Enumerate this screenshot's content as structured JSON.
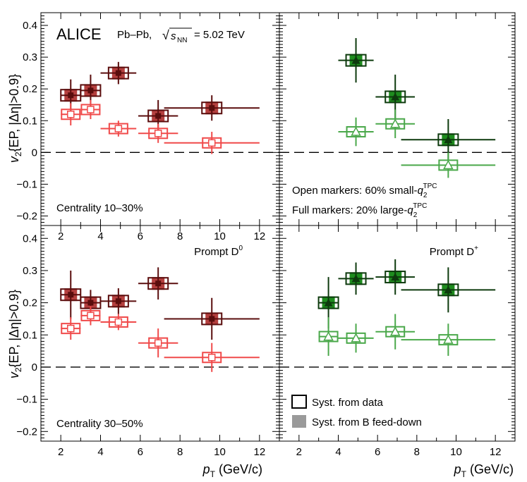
{
  "figure": {
    "experiment": "ALICE",
    "system": "Pb–Pb,",
    "energy": "= 5.02 TeV",
    "sqrt_sym": "√",
    "s_sym": "s",
    "nn_sub": "NN",
    "legend": {
      "data_label": "Syst. from data",
      "bfd_label": "Syst. from B feed-down",
      "open_markers_prefix": "Open markers: 60% small-",
      "full_markers_prefix": "Full markers: 20% large-",
      "q_sym": "q",
      "q_sub": "2",
      "q_sup": "TPC"
    },
    "ylabel": {
      "v": "v",
      "sub": "2",
      "rest": "{EP, |Δη|>0.9}"
    },
    "xlabel": {
      "p": "p",
      "sub": "T",
      "rest": " (GeV/c)"
    },
    "colors": {
      "D0_large": "#5a0d0d",
      "D0_large_fill": "#b5403f",
      "D0_small": "#f04a4a",
      "Dplus_large": "#0d3a0d",
      "Dplus_large_fill": "#1e8c1e",
      "Dplus_small": "#4aa84a"
    }
  },
  "chart_data": [
    {
      "type": "scatter",
      "panel": "top-left",
      "annotation": "Centrality 10–30%",
      "xlim": [
        1,
        13
      ],
      "ylim": [
        -0.23,
        0.44
      ],
      "x_ticks": [
        "2",
        "4",
        "6",
        "8",
        "10",
        "12"
      ],
      "y_ticks": [
        "−0.2",
        "−0.1",
        "0",
        "0.1",
        "0.2",
        "0.3",
        "0.4"
      ],
      "series": [
        {
          "style": "full",
          "species": "D0",
          "points": [
            {
              "x": 2.5,
              "xerr": 0.5,
              "y": 0.18,
              "yerr": 0.05
            },
            {
              "x": 3.5,
              "xerr": 0.5,
              "y": 0.195,
              "yerr": 0.05
            },
            {
              "x": 4.9,
              "xerr": 0.9,
              "y": 0.25,
              "yerr": 0.035
            },
            {
              "x": 6.9,
              "xerr": 1.0,
              "y": 0.115,
              "yerr": 0.05
            },
            {
              "x": 9.6,
              "xerr": 2.4,
              "y": 0.14,
              "yerr": 0.04
            }
          ]
        },
        {
          "style": "open",
          "species": "D0",
          "points": [
            {
              "x": 2.5,
              "xerr": 0.5,
              "y": 0.12,
              "yerr": 0.035
            },
            {
              "x": 3.5,
              "xerr": 0.5,
              "y": 0.135,
              "yerr": 0.03
            },
            {
              "x": 4.9,
              "xerr": 0.9,
              "y": 0.075,
              "yerr": 0.025
            },
            {
              "x": 6.9,
              "xerr": 1.0,
              "y": 0.06,
              "yerr": 0.03
            },
            {
              "x": 9.6,
              "xerr": 2.4,
              "y": 0.03,
              "yerr": 0.035
            }
          ]
        }
      ]
    },
    {
      "type": "scatter",
      "panel": "top-right",
      "annotation": "",
      "xlim": [
        1,
        13
      ],
      "ylim": [
        -0.23,
        0.44
      ],
      "x_ticks": [],
      "y_ticks": [],
      "series": [
        {
          "style": "full",
          "species": "Dplus",
          "points": [
            {
              "x": 4.9,
              "xerr": 0.9,
              "y": 0.29,
              "yerr": 0.07
            },
            {
              "x": 6.9,
              "xerr": 1.0,
              "y": 0.175,
              "yerr": 0.07
            },
            {
              "x": 9.6,
              "xerr": 2.4,
              "y": 0.04,
              "yerr": 0.065
            }
          ]
        },
        {
          "style": "open",
          "species": "Dplus",
          "points": [
            {
              "x": 4.9,
              "xerr": 0.9,
              "y": 0.065,
              "yerr": 0.045
            },
            {
              "x": 6.9,
              "xerr": 1.0,
              "y": 0.09,
              "yerr": 0.045
            },
            {
              "x": 9.6,
              "xerr": 2.4,
              "y": -0.04,
              "yerr": 0.04
            }
          ]
        }
      ]
    },
    {
      "type": "scatter",
      "panel": "bottom-left",
      "annotation": "Centrality 30–50%",
      "label": "Prompt D",
      "label_sup": "0",
      "xlim": [
        1,
        13
      ],
      "ylim": [
        -0.23,
        0.44
      ],
      "x_ticks": [
        "2",
        "4",
        "6",
        "8",
        "10",
        "12"
      ],
      "y_ticks": [
        "−0.2",
        "−0.1",
        "0",
        "0.1",
        "0.2",
        "0.3",
        "0.4"
      ],
      "series": [
        {
          "style": "full",
          "species": "D0",
          "points": [
            {
              "x": 2.5,
              "xerr": 0.5,
              "y": 0.225,
              "yerr": 0.075
            },
            {
              "x": 3.5,
              "xerr": 0.5,
              "y": 0.2,
              "yerr": 0.04
            },
            {
              "x": 4.9,
              "xerr": 0.9,
              "y": 0.205,
              "yerr": 0.04
            },
            {
              "x": 6.9,
              "xerr": 1.0,
              "y": 0.26,
              "yerr": 0.05
            },
            {
              "x": 9.6,
              "xerr": 2.4,
              "y": 0.15,
              "yerr": 0.065
            }
          ]
        },
        {
          "style": "open",
          "species": "D0",
          "points": [
            {
              "x": 2.5,
              "xerr": 0.5,
              "y": 0.12,
              "yerr": 0.035
            },
            {
              "x": 3.5,
              "xerr": 0.5,
              "y": 0.16,
              "yerr": 0.03
            },
            {
              "x": 4.9,
              "xerr": 0.9,
              "y": 0.14,
              "yerr": 0.025
            },
            {
              "x": 6.9,
              "xerr": 1.0,
              "y": 0.075,
              "yerr": 0.045
            },
            {
              "x": 9.6,
              "xerr": 2.4,
              "y": 0.03,
              "yerr": 0.045
            }
          ]
        }
      ]
    },
    {
      "type": "scatter",
      "panel": "bottom-right",
      "annotation": "",
      "label": "Prompt D",
      "label_sup": "+",
      "xlim": [
        1,
        13
      ],
      "ylim": [
        -0.23,
        0.44
      ],
      "x_ticks": [
        "2",
        "4",
        "6",
        "8",
        "10",
        "12"
      ],
      "y_ticks": [],
      "series": [
        {
          "style": "full",
          "species": "Dplus",
          "points": [
            {
              "x": 3.5,
              "xerr": 0.5,
              "y": 0.2,
              "yerr": 0.08
            },
            {
              "x": 4.9,
              "xerr": 0.9,
              "y": 0.275,
              "yerr": 0.05
            },
            {
              "x": 6.9,
              "xerr": 1.0,
              "y": 0.28,
              "yerr": 0.055
            },
            {
              "x": 9.6,
              "xerr": 2.4,
              "y": 0.24,
              "yerr": 0.07
            }
          ]
        },
        {
          "style": "open",
          "species": "Dplus",
          "points": [
            {
              "x": 3.5,
              "xerr": 0.5,
              "y": 0.095,
              "yerr": 0.06
            },
            {
              "x": 4.9,
              "xerr": 0.9,
              "y": 0.09,
              "yerr": 0.045
            },
            {
              "x": 6.9,
              "xerr": 1.0,
              "y": 0.11,
              "yerr": 0.055
            },
            {
              "x": 9.6,
              "xerr": 2.4,
              "y": 0.085,
              "yerr": 0.05
            }
          ]
        }
      ]
    }
  ]
}
